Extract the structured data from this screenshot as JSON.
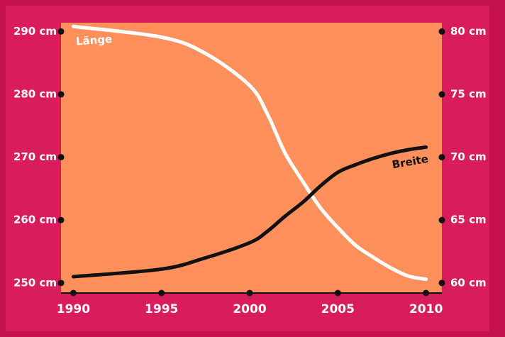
{
  "chart_data": {
    "type": "line",
    "x": [
      1990,
      1995,
      1997.5,
      2000,
      2001,
      2002,
      2003,
      2004,
      2005,
      2006,
      2007,
      2008,
      2009,
      2010
    ],
    "xlim": [
      1989.3,
      2010.9
    ],
    "xticks": [
      1990,
      1995,
      2000,
      2005,
      2010
    ],
    "ylim": [
      248.4,
      291.4
    ],
    "yticks": [
      {
        "value": 250,
        "label": "250 cm"
      },
      {
        "value": 260,
        "label": "260 cm"
      },
      {
        "value": 270,
        "label": "270 cm"
      },
      {
        "value": 280,
        "label": "280 cm"
      },
      {
        "value": 290,
        "label": "290 cm"
      }
    ],
    "y2lim": [
      59.2,
      80.7
    ],
    "y2ticks": [
      {
        "value": 60,
        "label": "60 cm"
      },
      {
        "value": 65,
        "label": "65 cm"
      },
      {
        "value": 70,
        "label": "70 cm"
      },
      {
        "value": 75,
        "label": "75 cm"
      },
      {
        "value": 80,
        "label": "80 cm"
      }
    ],
    "series": [
      {
        "name": "Länge",
        "color": "#ffffff",
        "values": [
          290.8,
          289.1,
          286.5,
          281.4,
          276.9,
          270.7,
          266.2,
          262.0,
          258.8,
          256.0,
          254.1,
          252.4,
          251.1,
          250.6
        ]
      },
      {
        "name": "Breite",
        "color": "#111111",
        "axis": "y2",
        "values": [
          60.5,
          61.1,
          62.0,
          63.2,
          64.1,
          65.3,
          66.4,
          67.7,
          68.8,
          69.4,
          69.9,
          70.3,
          70.6,
          70.8
        ]
      }
    ]
  }
}
